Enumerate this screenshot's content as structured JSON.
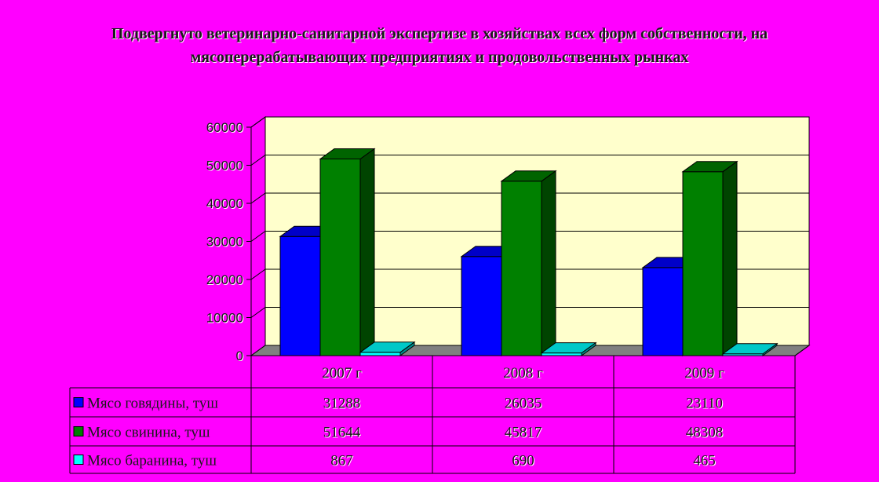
{
  "chart_data": {
    "type": "bar",
    "title": "Подвергнуто ветеринарно-санитарной экспертизе в хозяйствах всех форм собственности, на мясоперерабатывающих предприятиях и продовольственных рынках",
    "categories": [
      "2007 г",
      "2008 г",
      "2009 г"
    ],
    "series": [
      {
        "name": "Мясо говядины, туш",
        "color": "#0000ff",
        "side": "#00008b",
        "top": "#0000c8",
        "values": [
          31288,
          26035,
          23110
        ]
      },
      {
        "name": "Мясо свинина, туш",
        "color": "#008000",
        "side": "#004400",
        "top": "#006400",
        "values": [
          51644,
          45817,
          48308
        ]
      },
      {
        "name": "Мясо баранина, туш",
        "color": "#00ffff",
        "side": "#008b8b",
        "top": "#00c8c8",
        "values": [
          867,
          690,
          465
        ]
      }
    ],
    "table_values": [
      [
        "31288",
        "26035",
        "23110"
      ],
      [
        "51644",
        "45817",
        "48308"
      ],
      [
        "867",
        "690",
        "465"
      ]
    ],
    "ylim": [
      0,
      60000
    ],
    "yticks": [
      "0",
      "10000",
      "20000",
      "30000",
      "40000",
      "50000",
      "60000"
    ],
    "grid": true,
    "legend": "data-table",
    "plot_background": "#ffffcc",
    "floor_color": "#808080"
  }
}
